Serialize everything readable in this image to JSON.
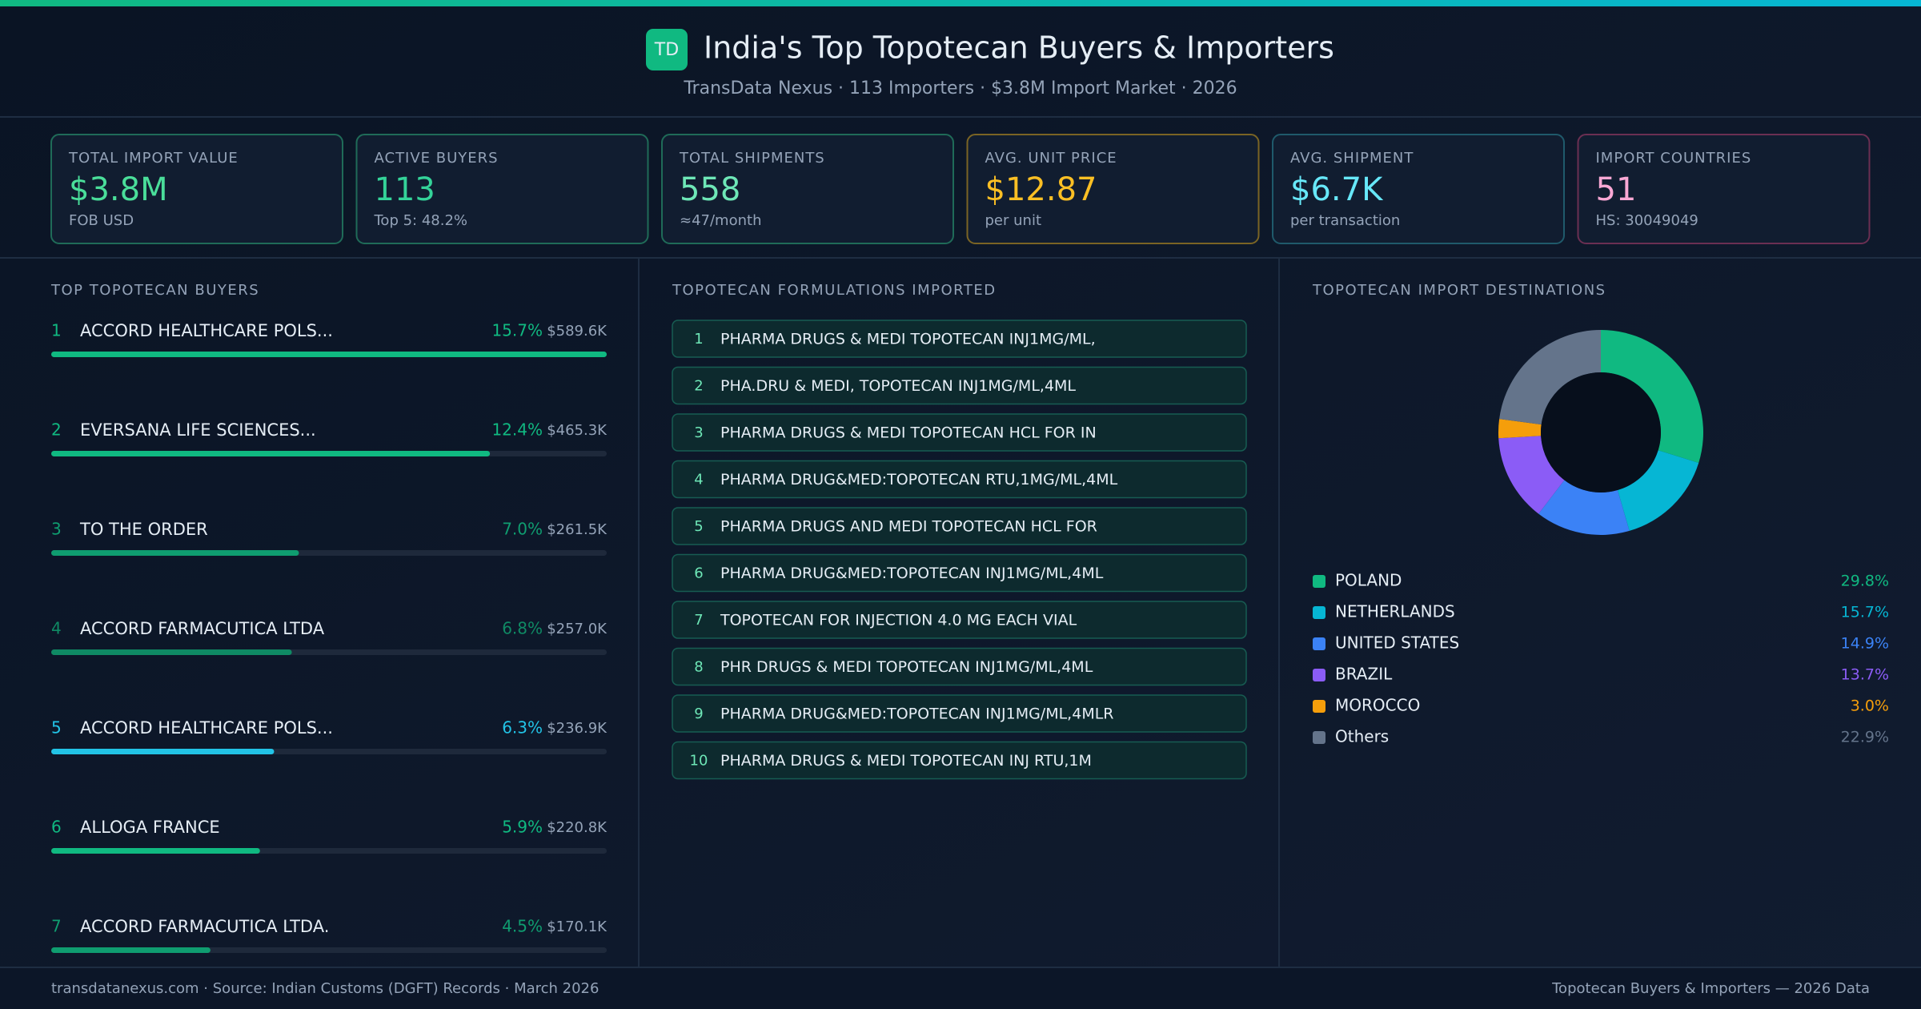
{
  "header": {
    "badge": "TD",
    "title": "India's Top Topotecan Buyers & Importers",
    "subtitle": "TransData Nexus · 113 Importers · $3.8M Import Market · 2026"
  },
  "kpis": [
    {
      "label": "TOTAL IMPORT VALUE",
      "value": "$3.8M",
      "sub": "FOB USD",
      "color": "#4ade9a",
      "border": "#1f6b58"
    },
    {
      "label": "ACTIVE BUYERS",
      "value": "113",
      "sub": "Top 5: 48.2%",
      "color": "#34d399",
      "border": "#1f6b58"
    },
    {
      "label": "TOTAL SHIPMENTS",
      "value": "558",
      "sub": "≈47/month",
      "color": "#6ee7b7",
      "border": "#1f6b58"
    },
    {
      "label": "AVG. UNIT PRICE",
      "value": "$12.87",
      "sub": "per unit",
      "color": "#fbbf24",
      "border": "#7a6424"
    },
    {
      "label": "AVG. SHIPMENT",
      "value": "$6.7K",
      "sub": "per transaction",
      "color": "#67e8f9",
      "border": "#1f5a6b"
    },
    {
      "label": "IMPORT COUNTRIES",
      "value": "51",
      "sub": "HS: 30049049",
      "color": "#f9a8d4",
      "border": "#6b2f52"
    }
  ],
  "buyers": {
    "title": "TOP TOPOTECAN BUYERS",
    "rows": [
      {
        "rank": 1,
        "name": "ACCORD HEALTHCARE POLS...",
        "share": 15.7,
        "share_label": "15.7%",
        "value_label": "$589.6K",
        "color": "#10b981"
      },
      {
        "rank": 2,
        "name": "EVERSANA LIFE SCIENCES...",
        "share": 12.4,
        "share_label": "12.4%",
        "value_label": "$465.3K",
        "color": "#10b981"
      },
      {
        "rank": 3,
        "name": "TO THE ORDER",
        "share": 7.0,
        "share_label": "7.0%",
        "value_label": "$261.5K",
        "color": "#0f9d70"
      },
      {
        "rank": 4,
        "name": "ACCORD FARMACUTICA LTDA",
        "share": 6.8,
        "share_label": "6.8%",
        "value_label": "$257.0K",
        "color": "#0f8a64"
      },
      {
        "rank": 5,
        "name": "ACCORD HEALTHCARE POLS...",
        "share": 6.3,
        "share_label": "6.3%",
        "value_label": "$236.9K",
        "color": "#22c3e6"
      },
      {
        "rank": 6,
        "name": "ALLOGA FRANCE",
        "share": 5.9,
        "share_label": "5.9%",
        "value_label": "$220.8K",
        "color": "#10b981"
      },
      {
        "rank": 7,
        "name": "ACCORD FARMACUTICA LTDA.",
        "share": 4.5,
        "share_label": "4.5%",
        "value_label": "$170.1K",
        "color": "#0f9d70"
      }
    ]
  },
  "formulations": {
    "title": "TOPOTECAN FORMULATIONS IMPORTED",
    "rows": [
      {
        "rank": 1,
        "name": "PHARMA DRUGS & MEDI TOPOTECAN INJ1MG/ML,"
      },
      {
        "rank": 2,
        "name": "PHA.DRU & MEDI, TOPOTECAN INJ1MG/ML,4ML"
      },
      {
        "rank": 3,
        "name": "PHARMA DRUGS & MEDI TOPOTECAN HCL FOR IN"
      },
      {
        "rank": 4,
        "name": "PHARMA DRUG&MED:TOPOTECAN RTU,1MG/ML,4ML"
      },
      {
        "rank": 5,
        "name": "PHARMA DRUGS AND MEDI TOPOTECAN HCL FOR"
      },
      {
        "rank": 6,
        "name": "PHARMA DRUG&MED:TOPOTECAN INJ1MG/ML,4ML"
      },
      {
        "rank": 7,
        "name": "TOPOTECAN FOR INJECTION 4.0 MG EACH VIAL"
      },
      {
        "rank": 8,
        "name": "PHR DRUGS & MEDI TOPOTECAN INJ1MG/ML,4ML"
      },
      {
        "rank": 9,
        "name": "PHARMA DRUG&MED:TOPOTECAN INJ1MG/ML,4MLR"
      },
      {
        "rank": 10,
        "name": "PHARMA DRUGS & MEDI TOPOTECAN INJ RTU,1M"
      }
    ]
  },
  "chart_data": {
    "type": "pie",
    "donut": true,
    "title": "TOPOTECAN IMPORT DESTINATIONS",
    "categories": [
      "POLAND",
      "NETHERLANDS",
      "UNITED STATES",
      "BRAZIL",
      "MOROCCO",
      "Others"
    ],
    "values": [
      29.8,
      15.7,
      14.9,
      13.7,
      3.0,
      22.9
    ],
    "value_labels": [
      "29.8%",
      "15.7%",
      "14.9%",
      "13.7%",
      "3.0%",
      "22.9%"
    ],
    "colors": [
      "#10b981",
      "#06b6d4",
      "#3b82f6",
      "#8b5cf6",
      "#f59e0b",
      "#64748b"
    ]
  },
  "footer": {
    "left": "transdatanexus.com · Source: Indian Customs (DGFT) Records · March 2026",
    "right": "Topotecan Buyers & Importers — 2026 Data"
  }
}
